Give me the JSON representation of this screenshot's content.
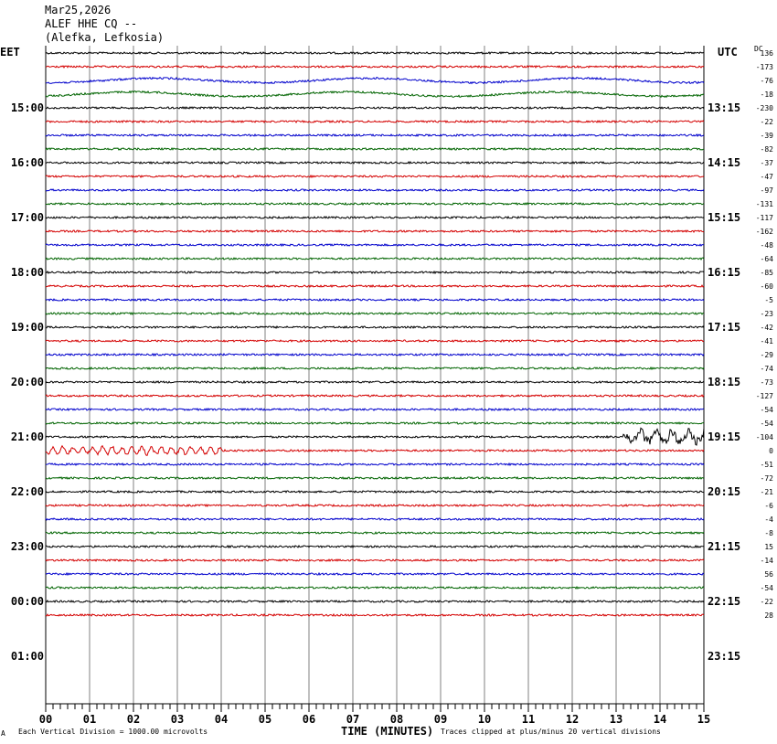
{
  "header": {
    "date": "Mar25,2026",
    "station": "ALEF HHE CQ --",
    "location": "(Alefka, Lefkosia)"
  },
  "left_zone": "EET",
  "right_zone": "UTC",
  "dc_label": "DC",
  "footer": {
    "left_mark": "A",
    "scale_note": "Each Vertical Division = 1000.00 microvolts",
    "x_axis_title": "TIME (MINUTES)",
    "clip_note": "Traces clipped at plus/minus 20 vertical divisions"
  },
  "colors": {
    "trace_cycle": [
      "#000000",
      "#d40000",
      "#0000cc",
      "#006400"
    ],
    "grid": "#808080",
    "axis": "#000000"
  },
  "chart_data": {
    "type": "line",
    "title": "ALEF HHE CQ --",
    "xlabel": "TIME (MINUTES)",
    "xlim": [
      0,
      15
    ],
    "x_ticks": [
      "00",
      "01",
      "02",
      "03",
      "04",
      "05",
      "06",
      "07",
      "08",
      "09",
      "10",
      "11",
      "12",
      "13",
      "14",
      "15"
    ],
    "rows_per_hour": 4,
    "left_time_labels": [
      "15:00",
      "16:00",
      "17:00",
      "18:00",
      "19:00",
      "20:00",
      "21:00",
      "22:00",
      "23:00",
      "00:00",
      "01:00"
    ],
    "right_time_labels": [
      "13:15",
      "14:15",
      "15:15",
      "16:15",
      "17:15",
      "18:15",
      "19:15",
      "20:15",
      "21:15",
      "22:15",
      "23:15"
    ],
    "dc_offsets": [
      "136",
      "-173",
      "-76",
      "-18",
      "-230",
      "-22",
      "-39",
      "-82",
      "-37",
      "-47",
      "-97",
      "-131",
      "-117",
      "-162",
      "-48",
      "-64",
      "-85",
      "-60",
      "-5",
      "-23",
      "-42",
      "-41",
      "-29",
      "-74",
      "-73",
      "-127",
      "-54",
      "-54",
      "-104",
      "0",
      "-51",
      "-72",
      "-21",
      "-6",
      "-4",
      "-8",
      "15",
      "-14",
      "56",
      "-54",
      "-22",
      "28"
    ],
    "events": [
      {
        "row": 29,
        "start_min": 0.0,
        "end_min": 4.0,
        "amplitude": "moderate"
      },
      {
        "row": 28,
        "start_min": 13.0,
        "end_min": 15.0,
        "amplitude": "large"
      },
      {
        "row": 3,
        "start_min": 0.0,
        "end_min": 15.0,
        "amplitude": "long-period swell"
      },
      {
        "row": 2,
        "start_min": 0.0,
        "end_min": 15.0,
        "amplitude": "long-period swell"
      }
    ]
  }
}
